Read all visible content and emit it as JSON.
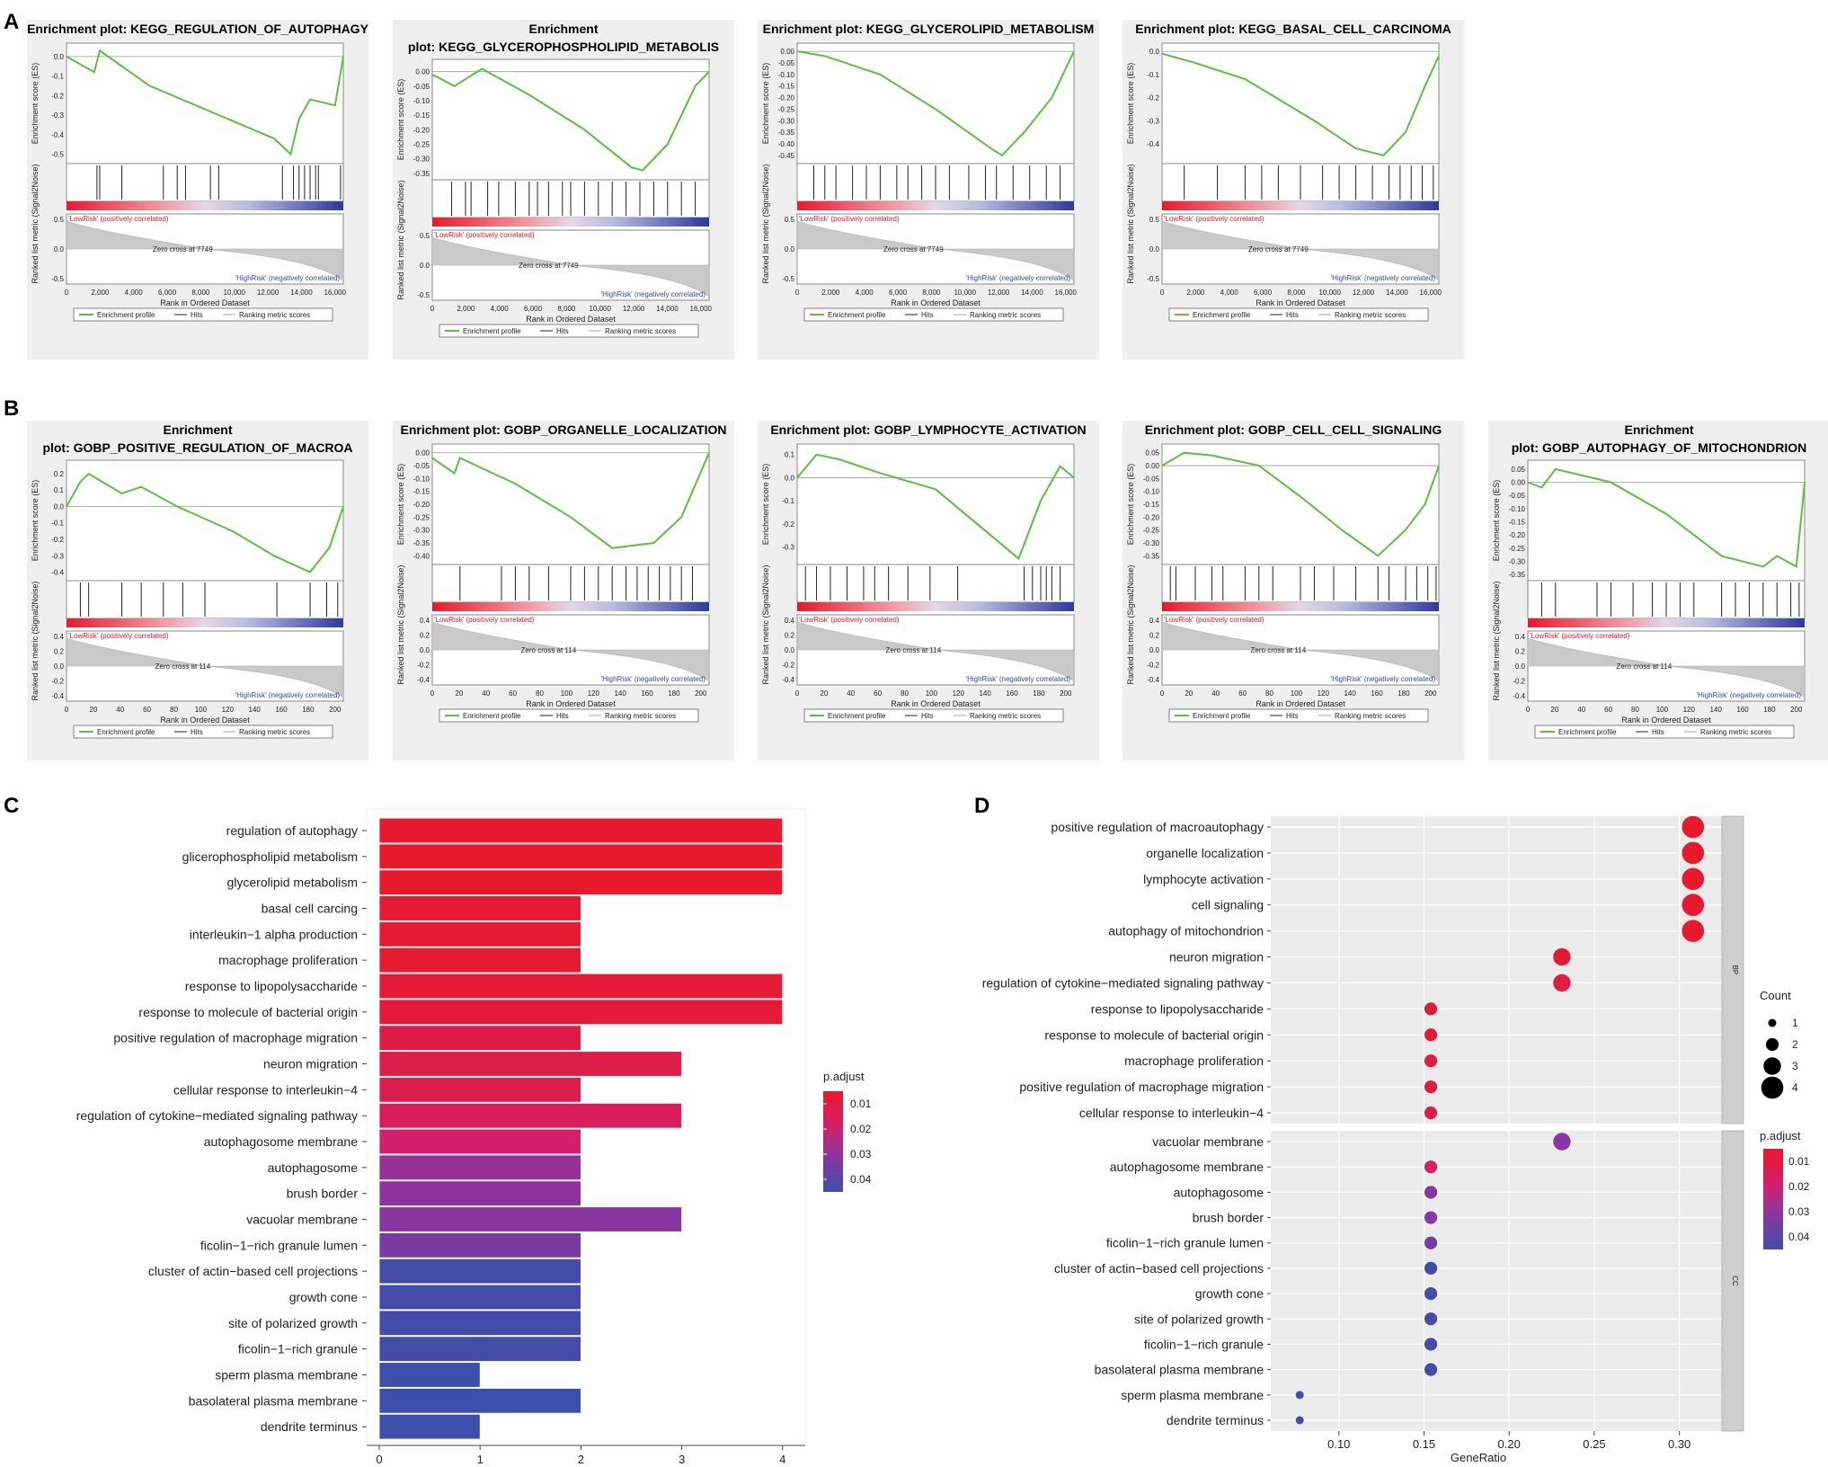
{
  "panel_labels": {
    "A": "A",
    "B": "B",
    "C": "C",
    "D": "D"
  },
  "gsea_common": {
    "y_top": "Enrichment score (ES)",
    "y_bottom": "Ranked list metric (Signal2Noise)",
    "x_label": "Rank in Ordered Dataset",
    "low_label": "'LowRisk' (positively correlated)",
    "high_label": "'HighRisk' (negatively correlated)",
    "legend_profile": "Enrichment profile",
    "legend_hits": "Hits",
    "legend_metric": "Ranking metric scores"
  },
  "colors": {
    "curve": "#58c33a",
    "high": "#e8192c",
    "low": "#3446a8"
  },
  "chart_data": [
    {
      "id": "A1",
      "type": "line",
      "title": "Enrichment plot: KEGG_REGULATION_OF_AUTOPHAGY",
      "es_ticks": [
        "0.0",
        "-0.1",
        "-0.2",
        "-0.3",
        "-0.4",
        "-0.5"
      ],
      "es_range": [
        -0.53,
        0.05
      ],
      "es_points": [
        [
          0,
          0.0
        ],
        [
          0.1,
          -0.08
        ],
        [
          0.12,
          0.03
        ],
        [
          0.3,
          -0.15
        ],
        [
          0.55,
          -0.3
        ],
        [
          0.75,
          -0.42
        ],
        [
          0.81,
          -0.5
        ],
        [
          0.84,
          -0.32
        ],
        [
          0.88,
          -0.22
        ],
        [
          0.97,
          -0.25
        ],
        [
          1.0,
          0.0
        ]
      ],
      "hits": [
        0.11,
        0.12,
        0.2,
        0.35,
        0.4,
        0.43,
        0.52,
        0.55,
        0.78,
        0.82,
        0.84,
        0.86,
        0.88,
        0.9,
        0.91,
        0.99
      ],
      "metric_ticks": [
        "0.5",
        "0.0",
        "-0.5"
      ],
      "x_ticks": [
        "0",
        "2,000",
        "4,000",
        "6,000",
        "8,000",
        "10,000",
        "12,000",
        "14,000",
        "16,000"
      ],
      "zero_cross": "Zero cross at 7749"
    },
    {
      "id": "A2",
      "type": "line",
      "title": "Enrichment plot: KEGG_GLYCEROPHOSPHOLIPID_METABOLISM",
      "es_ticks": [
        "0.00",
        "-0.05",
        "-0.10",
        "-0.15",
        "-0.20",
        "-0.25",
        "-0.30",
        "-0.35"
      ],
      "es_range": [
        -0.36,
        0.03
      ],
      "es_points": [
        [
          0,
          -0.01
        ],
        [
          0.08,
          -0.05
        ],
        [
          0.18,
          0.01
        ],
        [
          0.35,
          -0.08
        ],
        [
          0.55,
          -0.2
        ],
        [
          0.72,
          -0.33
        ],
        [
          0.76,
          -0.34
        ],
        [
          0.85,
          -0.25
        ],
        [
          0.95,
          -0.05
        ],
        [
          1.0,
          0.0
        ]
      ],
      "hits": [
        0.07,
        0.12,
        0.14,
        0.2,
        0.24,
        0.3,
        0.35,
        0.38,
        0.42,
        0.47,
        0.5,
        0.55,
        0.6,
        0.65,
        0.7,
        0.75,
        0.8,
        0.85,
        0.9,
        0.95
      ],
      "metric_ticks": [
        "0.5",
        "0.0",
        "-0.5"
      ],
      "x_ticks": [
        "0",
        "2,000",
        "4,000",
        "6,000",
        "8,000",
        "10,000",
        "12,000",
        "14,000",
        "16,000"
      ],
      "zero_cross": "Zero cross at 7749"
    },
    {
      "id": "A3",
      "type": "line",
      "title": "Enrichment plot: KEGG_GLYCEROLIPID_METABOLISM",
      "es_ticks": [
        "0.00",
        "-0.05",
        "-0.10",
        "-0.15",
        "-0.20",
        "-0.25",
        "-0.30",
        "-0.35",
        "-0.40",
        "-0.45"
      ],
      "es_range": [
        -0.47,
        0.02
      ],
      "es_points": [
        [
          0,
          0.0
        ],
        [
          0.1,
          -0.02
        ],
        [
          0.3,
          -0.1
        ],
        [
          0.5,
          -0.25
        ],
        [
          0.7,
          -0.42
        ],
        [
          0.74,
          -0.45
        ],
        [
          0.82,
          -0.35
        ],
        [
          0.92,
          -0.2
        ],
        [
          1.0,
          0.0
        ]
      ],
      "hits": [
        0.06,
        0.1,
        0.14,
        0.2,
        0.25,
        0.3,
        0.36,
        0.4,
        0.45,
        0.5,
        0.55,
        0.62,
        0.68,
        0.72,
        0.78,
        0.84,
        0.9,
        0.95
      ],
      "metric_ticks": [
        "0.5",
        "0.0",
        "-0.5"
      ],
      "x_ticks": [
        "0",
        "2,000",
        "4,000",
        "6,000",
        "8,000",
        "10,000",
        "12,000",
        "14,000",
        "16,000"
      ],
      "zero_cross": "Zero cross at 7749"
    },
    {
      "id": "A4",
      "type": "line",
      "title": "Enrichment plot: KEGG_BASAL_CELL_CARCINOMA",
      "es_ticks": [
        "0.0",
        "-0.1",
        "-0.2",
        "-0.3",
        "-0.4"
      ],
      "es_range": [
        -0.47,
        0.02
      ],
      "es_points": [
        [
          0,
          -0.01
        ],
        [
          0.12,
          -0.05
        ],
        [
          0.3,
          -0.12
        ],
        [
          0.55,
          -0.3
        ],
        [
          0.7,
          -0.42
        ],
        [
          0.8,
          -0.45
        ],
        [
          0.88,
          -0.35
        ],
        [
          0.95,
          -0.15
        ],
        [
          1.0,
          -0.02
        ]
      ],
      "hits": [
        0.08,
        0.2,
        0.3,
        0.36,
        0.42,
        0.5,
        0.58,
        0.64,
        0.7,
        0.76,
        0.82,
        0.86,
        0.9,
        0.94,
        0.98
      ],
      "metric_ticks": [
        "0.5",
        "0.0",
        "-0.5"
      ],
      "x_ticks": [
        "0",
        "2,000",
        "4,000",
        "6,000",
        "8,000",
        "10,000",
        "12,000",
        "14,000",
        "16,000"
      ],
      "zero_cross": "Zero cross at 7749"
    },
    {
      "id": "B1",
      "type": "line",
      "title": "Enrichment plot: GOBP_POSITIVE_REGULATION_OF_MACROAUTOPHAGY",
      "es_ticks": [
        "0.2",
        "0.1",
        "0.0",
        "-0.1",
        "-0.2",
        "-0.3",
        "-0.4"
      ],
      "es_range": [
        -0.43,
        0.26
      ],
      "es_points": [
        [
          0,
          0.0
        ],
        [
          0.05,
          0.15
        ],
        [
          0.08,
          0.2
        ],
        [
          0.2,
          0.08
        ],
        [
          0.27,
          0.12
        ],
        [
          0.4,
          0.0
        ],
        [
          0.6,
          -0.15
        ],
        [
          0.75,
          -0.3
        ],
        [
          0.88,
          -0.4
        ],
        [
          0.95,
          -0.25
        ],
        [
          1.0,
          0.0
        ]
      ],
      "hits": [
        0.05,
        0.08,
        0.2,
        0.27,
        0.35,
        0.42,
        0.5,
        0.76,
        0.88,
        0.94,
        0.98
      ],
      "metric_ticks": [
        "0.4",
        "0.2",
        "0.0",
        "-0.2",
        "-0.4"
      ],
      "x_ticks": [
        "0",
        "20",
        "40",
        "60",
        "80",
        "100",
        "120",
        "140",
        "160",
        "180",
        "200"
      ],
      "zero_cross": "Zero cross at 114"
    },
    {
      "id": "B2",
      "type": "line",
      "title": "Enrichment plot: GOBP_ORGANELLE_LOCALIZATION",
      "es_ticks": [
        "0.00",
        "-0.05",
        "-0.10",
        "-0.15",
        "-0.20",
        "-0.25",
        "-0.30",
        "-0.35",
        "-0.40"
      ],
      "es_range": [
        -0.42,
        0.02
      ],
      "es_points": [
        [
          0,
          -0.02
        ],
        [
          0.08,
          -0.08
        ],
        [
          0.1,
          -0.02
        ],
        [
          0.3,
          -0.12
        ],
        [
          0.5,
          -0.25
        ],
        [
          0.65,
          -0.37
        ],
        [
          0.8,
          -0.35
        ],
        [
          0.9,
          -0.25
        ],
        [
          1.0,
          0.0
        ]
      ],
      "hits": [
        0.1,
        0.25,
        0.3,
        0.35,
        0.42,
        0.5,
        0.55,
        0.6,
        0.65,
        0.7,
        0.74,
        0.78,
        0.82,
        0.86,
        0.9,
        0.94
      ],
      "metric_ticks": [
        "0.4",
        "0.2",
        "0.0",
        "-0.2",
        "-0.4"
      ],
      "x_ticks": [
        "0",
        "20",
        "40",
        "60",
        "80",
        "100",
        "120",
        "140",
        "160",
        "180",
        "200"
      ],
      "zero_cross": "Zero cross at 114"
    },
    {
      "id": "B3",
      "type": "line",
      "title": "Enrichment plot: GOBP_LYMPHOCYTE_ACTIVATION",
      "es_ticks": [
        "0.1",
        "0.0",
        "-0.1",
        "-0.2",
        "-0.3"
      ],
      "es_range": [
        -0.36,
        0.13
      ],
      "es_points": [
        [
          0,
          0.0
        ],
        [
          0.07,
          0.1
        ],
        [
          0.15,
          0.08
        ],
        [
          0.3,
          0.02
        ],
        [
          0.5,
          -0.05
        ],
        [
          0.7,
          -0.25
        ],
        [
          0.8,
          -0.35
        ],
        [
          0.88,
          -0.1
        ],
        [
          0.95,
          0.05
        ],
        [
          1.0,
          0.0
        ]
      ],
      "hits": [
        0.03,
        0.07,
        0.12,
        0.18,
        0.24,
        0.28,
        0.33,
        0.4,
        0.48,
        0.58,
        0.82,
        0.85,
        0.88,
        0.9,
        0.92,
        0.95
      ],
      "metric_ticks": [
        "0.4",
        "0.2",
        "0.0",
        "-0.2",
        "-0.4"
      ],
      "x_ticks": [
        "0",
        "20",
        "40",
        "60",
        "80",
        "100",
        "120",
        "140",
        "160",
        "180",
        "200"
      ],
      "zero_cross": "Zero cross at 114"
    },
    {
      "id": "B4",
      "type": "line",
      "title": "Enrichment plot: GOBP_CELL_CELL_SIGNALING",
      "es_ticks": [
        "0.05",
        "0.00",
        "-0.05",
        "-0.10",
        "-0.15",
        "-0.20",
        "-0.25",
        "-0.30",
        "-0.35"
      ],
      "es_range": [
        -0.37,
        0.07
      ],
      "es_points": [
        [
          0,
          0.0
        ],
        [
          0.08,
          0.05
        ],
        [
          0.18,
          0.04
        ],
        [
          0.35,
          0.0
        ],
        [
          0.5,
          -0.12
        ],
        [
          0.65,
          -0.25
        ],
        [
          0.78,
          -0.35
        ],
        [
          0.88,
          -0.25
        ],
        [
          0.95,
          -0.15
        ],
        [
          1.0,
          0.0
        ]
      ],
      "hits": [
        0.03,
        0.05,
        0.12,
        0.18,
        0.22,
        0.3,
        0.35,
        0.4,
        0.5,
        0.55,
        0.62,
        0.7,
        0.78,
        0.82,
        0.88,
        0.92,
        0.96,
        0.99
      ],
      "metric_ticks": [
        "0.4",
        "0.2",
        "0.0",
        "-0.2",
        "-0.4"
      ],
      "x_ticks": [
        "0",
        "20",
        "40",
        "60",
        "80",
        "100",
        "120",
        "140",
        "160",
        "180",
        "200"
      ],
      "zero_cross": "Zero cross at 114"
    },
    {
      "id": "B5",
      "type": "line",
      "title": "Enrichment plot: GOBP_AUTOPHAGY_OF_MITOCHONDRION",
      "es_ticks": [
        "0.05",
        "0.00",
        "-0.05",
        "-0.10",
        "-0.15",
        "-0.20",
        "-0.25",
        "-0.30",
        "-0.35"
      ],
      "es_range": [
        -0.36,
        0.07
      ],
      "es_points": [
        [
          0,
          0.0
        ],
        [
          0.05,
          -0.02
        ],
        [
          0.1,
          0.05
        ],
        [
          0.3,
          0.0
        ],
        [
          0.5,
          -0.12
        ],
        [
          0.7,
          -0.28
        ],
        [
          0.85,
          -0.32
        ],
        [
          0.9,
          -0.28
        ],
        [
          0.97,
          -0.32
        ],
        [
          1.0,
          0.0
        ]
      ],
      "hits": [
        0.05,
        0.1,
        0.25,
        0.3,
        0.38,
        0.45,
        0.5,
        0.55,
        0.6,
        0.7,
        0.75,
        0.8,
        0.85,
        0.9,
        0.95,
        0.98
      ],
      "metric_ticks": [
        "0.4",
        "0.2",
        "0.0",
        "-0.2",
        "-0.4"
      ],
      "x_ticks": [
        "0",
        "20",
        "40",
        "60",
        "80",
        "100",
        "120",
        "140",
        "160",
        "180",
        "200"
      ],
      "zero_cross": "Zero cross at 114"
    },
    {
      "id": "C",
      "type": "bar",
      "orientation": "horizontal",
      "categories": [
        "regulation of autophagy",
        "glicerophospholipid metabolism",
        "glycerolipid metabolism",
        "basal cell carcing",
        "interleukin−1 alpha production",
        "macrophage proliferation",
        "response to lipopolysaccharide",
        "response to molecule of bacterial origin",
        "positive regulation of macrophage migration",
        "neuron migration",
        "cellular response to interleukin−4",
        "regulation of cytokine−mediated signaling pathway",
        "autophagosome membrane",
        "autophagosome",
        "brush border",
        "vacuolar membrane",
        "ficolin−1−rich granule lumen",
        "cluster of actin−based cell projections",
        "growth cone",
        "site of polarized growth",
        "ficolin−1−rich granule",
        "sperm plasma membrane",
        "basolateral plasma membrane",
        "dendrite terminus"
      ],
      "values": [
        4,
        4,
        4,
        2,
        2,
        2,
        4,
        4,
        2,
        3,
        2,
        3,
        2,
        2,
        2,
        3,
        2,
        2,
        2,
        2,
        2,
        1,
        2,
        1
      ],
      "p_adjust": [
        0.008,
        0.008,
        0.008,
        0.009,
        0.009,
        0.009,
        0.01,
        0.01,
        0.013,
        0.014,
        0.015,
        0.017,
        0.02,
        0.03,
        0.031,
        0.032,
        0.035,
        0.045,
        0.045,
        0.045,
        0.045,
        0.046,
        0.046,
        0.046
      ],
      "x_ticks": [
        "0",
        "1",
        "2",
        "3",
        "4"
      ],
      "xlim": [
        0,
        4.1
      ],
      "legend_title": "p.adjust",
      "legend_ticks": [
        "0.01",
        "0.02",
        "0.03",
        "0.04"
      ]
    },
    {
      "id": "D",
      "type": "scatter",
      "groups": [
        {
          "name": "BP",
          "terms": [
            "positive regulation of macroautophagy",
            "organelle localization",
            "lymphocyte activation",
            "cell signaling",
            "autophagy of mitochondrion",
            "neuron migration",
            "regulation of cytokine−mediated signaling pathway",
            "response to lipopolysaccharide",
            "response to molecule of bacterial origin",
            "macrophage proliferation",
            "positive regulation of macrophage migration",
            "cellular response to interleukin−4"
          ],
          "gene_ratio": [
            0.308,
            0.308,
            0.308,
            0.308,
            0.308,
            0.231,
            0.231,
            0.154,
            0.154,
            0.154,
            0.154,
            0.154
          ],
          "count": [
            4,
            4,
            4,
            4,
            4,
            3,
            3,
            2,
            2,
            2,
            2,
            2
          ],
          "p_adjust": [
            0.008,
            0.008,
            0.008,
            0.008,
            0.008,
            0.01,
            0.012,
            0.011,
            0.011,
            0.012,
            0.013,
            0.014
          ]
        },
        {
          "name": "CC",
          "terms": [
            "vacuolar membrane",
            "autophagosome membrane",
            "autophagosome",
            "brush border",
            "ficolin−1−rich granule lumen",
            "cluster of actin−based cell projections",
            "growth cone",
            "site of polarized growth",
            "ficolin−1−rich granule",
            "basolateral plasma membrane",
            "sperm plasma membrane",
            "dendrite terminus"
          ],
          "gene_ratio": [
            0.231,
            0.154,
            0.154,
            0.154,
            0.154,
            0.154,
            0.154,
            0.154,
            0.154,
            0.154,
            0.077,
            0.077
          ],
          "count": [
            3,
            2,
            2,
            2,
            2,
            2,
            2,
            2,
            2,
            2,
            1,
            1
          ],
          "p_adjust": [
            0.032,
            0.018,
            0.032,
            0.033,
            0.035,
            0.045,
            0.045,
            0.045,
            0.045,
            0.045,
            0.046,
            0.046
          ]
        }
      ],
      "x_ticks": [
        "0.10",
        "0.15",
        "0.20",
        "0.25",
        "0.30"
      ],
      "xlim": [
        0.06,
        0.325
      ],
      "xlabel": "GeneRatio",
      "size_legend_title": "Count",
      "size_legend_ticks": [
        "1",
        "2",
        "3",
        "4"
      ],
      "color_legend_title": "p.adjust",
      "color_legend_ticks": [
        "0.01",
        "0.02",
        "0.03",
        "0.04"
      ]
    }
  ]
}
